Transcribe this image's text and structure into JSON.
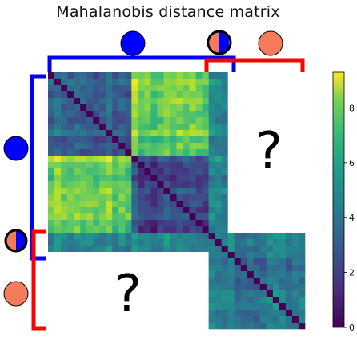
{
  "chart_data": {
    "type": "heatmap",
    "title": "Mahalanobis distance matrix",
    "colormap": "viridis",
    "colorbar": {
      "min": 0,
      "max": 9.3,
      "ticks": [
        0,
        2,
        4,
        6,
        8
      ]
    },
    "blocks": {
      "size": 40,
      "group_a_end": 13,
      "group_b_end": 25,
      "shared_end": 28,
      "group_c_end": 40,
      "within_group_a_mean": 2.6,
      "between_groups_ab_mean": 7.0,
      "within_group_b_mean": 1.9,
      "within_group_c_mean": 3.8,
      "diagonal": 0
    },
    "missing_blocks_label": "?",
    "groups": [
      {
        "color": "#0000ff",
        "shape": "circle"
      },
      {
        "color": "#f47c5c",
        "shape": "circle"
      },
      {
        "colors": [
          "#f47c5c",
          "#0000ff"
        ],
        "shape": "half-circle"
      }
    ],
    "bracket_colors": {
      "blue": "#0000ff",
      "red": "#ff0000"
    }
  }
}
